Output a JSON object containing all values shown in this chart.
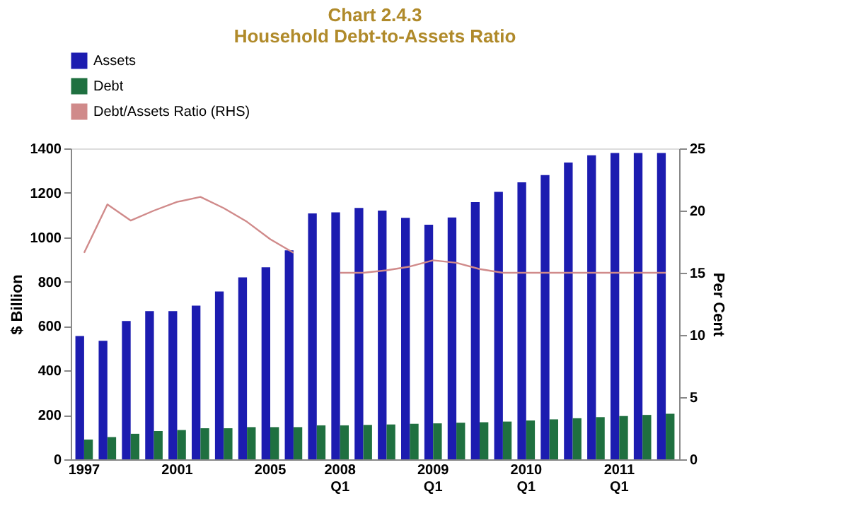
{
  "chart_data": {
    "type": "bar",
    "title": [
      "Chart 2.4.3",
      "Household Debt-to-Assets Ratio"
    ],
    "categories": [
      "1997",
      null,
      null,
      null,
      "2001",
      null,
      null,
      null,
      "2005",
      null,
      null,
      "2008 Q1",
      null,
      null,
      null,
      "2009 Q1",
      null,
      null,
      null,
      "2010 Q1",
      null,
      null,
      null,
      "2011 Q1",
      null,
      null
    ],
    "series": [
      {
        "name": "Assets",
        "color": "#1c1cb0",
        "values": [
          555,
          534,
          623,
          667,
          667,
          692,
          756,
          819,
          865,
          941,
          1107,
          1112,
          1132,
          1120,
          1087,
          1056,
          1089,
          1158,
          1204,
          1247,
          1280,
          1336,
          1369,
          1379,
          1379,
          1379
        ]
      },
      {
        "name": "Debt",
        "color": "#1f7040",
        "values": [
          89,
          100,
          115,
          127,
          132,
          140,
          140,
          145,
          145,
          145,
          153,
          153,
          155,
          157,
          160,
          162,
          165,
          167,
          170,
          175,
          180,
          185,
          190,
          195,
          200,
          205
        ]
      },
      {
        "name": "Debt/Assets Ratio (RHS)",
        "color": "#d08a8a",
        "type": "line",
        "axis": "y2",
        "values": [
          16.6,
          20.5,
          19.2,
          20,
          20.7,
          21.1,
          20.2,
          19.1,
          17.7,
          16.6,
          null,
          15,
          15,
          15.2,
          15.5,
          16,
          15.8,
          15.3,
          15,
          15,
          15,
          15,
          15,
          15,
          15,
          15
        ]
      }
    ],
    "ylabel": "$ Billion",
    "y2label": "Per Cent",
    "ylim": [
      0,
      1400
    ],
    "yticks": [
      0,
      200,
      400,
      600,
      800,
      1000,
      1200,
      1400
    ],
    "y2lim": [
      0,
      25
    ],
    "y2ticks": [
      0,
      5,
      10,
      15,
      20,
      25
    ],
    "legend": "top",
    "grid": false
  }
}
